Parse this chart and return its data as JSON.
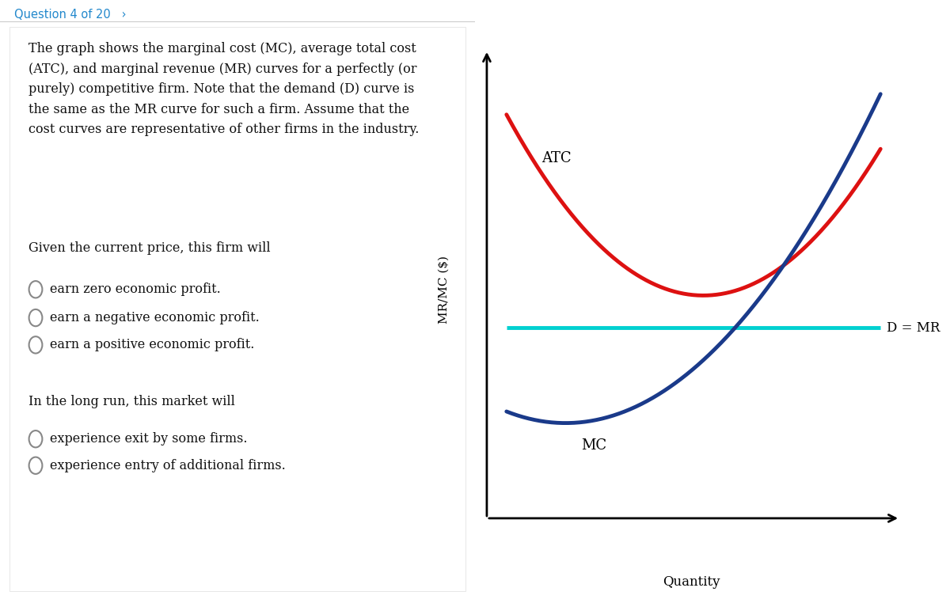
{
  "question_header": "Question 4 of 20   ›",
  "question_text_lines": [
    "The graph shows the marginal cost (MC), average total cost",
    "(ATC), and marginal revenue (MR) curves for a perfectly (or",
    "purely) competitive firm. Note that the demand (D) curve is",
    "the same as the MR curve for such a firm. Assume that the",
    "cost curves are representative of other firms in the industry."
  ],
  "given_current_price_text": "Given the current price, this firm will",
  "options_1": [
    "earn zero economic profit.",
    "earn a negative economic profit.",
    "earn a positive economic profit."
  ],
  "long_run_text": "In the long run, this market will",
  "options_2": [
    "experience exit by some firms.",
    "experience entry of additional firms."
  ],
  "xlabel": "Quantity",
  "ylabel": "MR/MC ($)",
  "atc_color": "#dd1111",
  "mc_color": "#1a3a8a",
  "mr_color": "#00d0d0",
  "background_color": "#ffffff",
  "panel_bg": "#f5f5f5",
  "atc_label": "ATC",
  "mc_label": "MC",
  "mr_label": "D = MR",
  "mr_y": 5.0,
  "atc_min_x": 5.5,
  "atc_min_y": 5.85,
  "atc_coeff": 0.19,
  "mc_min_x": 2.0,
  "mc_min_y": 2.5,
  "mc_coeff": 0.135,
  "x_start": 0.5,
  "x_end": 10.0,
  "xlim_min": -0.3,
  "xlim_max": 10.8,
  "ylim_min": -0.8,
  "ylim_max": 12.5
}
